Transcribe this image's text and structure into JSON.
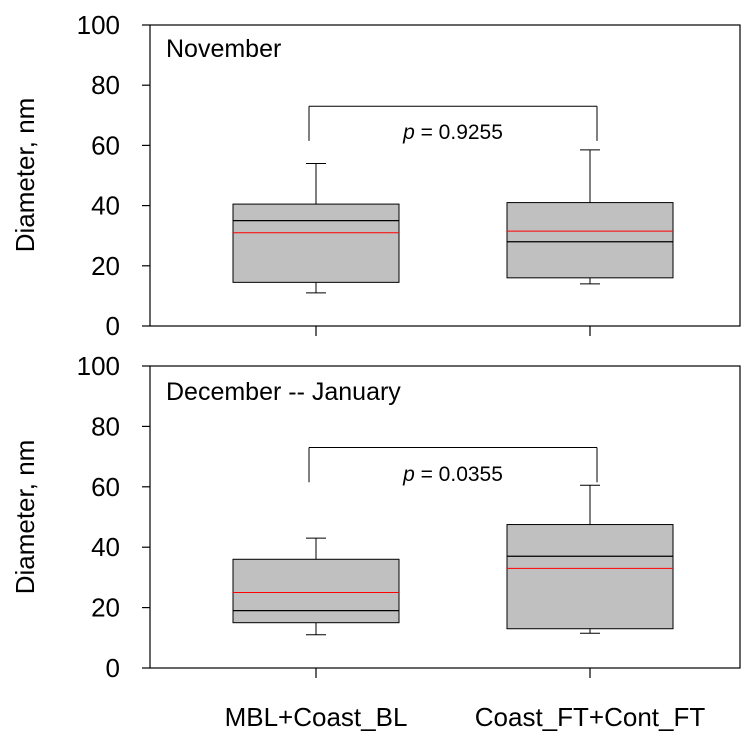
{
  "chart_data": [
    {
      "type": "box",
      "title": "November",
      "ylabel": "Diameter, nm",
      "ylim": [
        0,
        100
      ],
      "yticks": [
        "0",
        "20",
        "40",
        "60",
        "80",
        "100"
      ],
      "categories": [
        "MBL+Coast_BL",
        "Coast_FT+Cont_FT"
      ],
      "boxes": [
        {
          "category": "MBL+Coast_BL",
          "whisker_low": 11,
          "q1": 14.5,
          "median": 35,
          "mean": 31,
          "q3": 40.5,
          "whisker_high": 54
        },
        {
          "category": "Coast_FT+Cont_FT",
          "whisker_low": 14,
          "q1": 16,
          "median": 28,
          "mean": 31.5,
          "q3": 41,
          "whisker_high": 58.5
        }
      ],
      "pvalue_label": "p",
      "pvalue_text": " = 0.9255"
    },
    {
      "type": "box",
      "title": "December -- January",
      "ylabel": "Diameter, nm",
      "ylim": [
        0,
        100
      ],
      "yticks": [
        "0",
        "20",
        "40",
        "60",
        "80",
        "100"
      ],
      "categories": [
        "MBL+Coast_BL",
        "Coast_FT+Cont_FT"
      ],
      "boxes": [
        {
          "category": "MBL+Coast_BL",
          "whisker_low": 11,
          "q1": 15,
          "median": 19,
          "mean": 25,
          "q3": 36,
          "whisker_high": 43
        },
        {
          "category": "Coast_FT+Cont_FT",
          "whisker_low": 11.5,
          "q1": 13,
          "median": 37,
          "mean": 33,
          "q3": 47.5,
          "whisker_high": 60.5
        }
      ],
      "pvalue_label": "p",
      "pvalue_text": " = 0.0355"
    }
  ],
  "x_category_labels": [
    "MBL+Coast_BL",
    "Coast_FT+Cont_FT"
  ],
  "colors": {
    "box_fill": "#c0c0c0",
    "mean_line": "#ff0000",
    "median_line": "#000000",
    "axis": "#000000"
  }
}
